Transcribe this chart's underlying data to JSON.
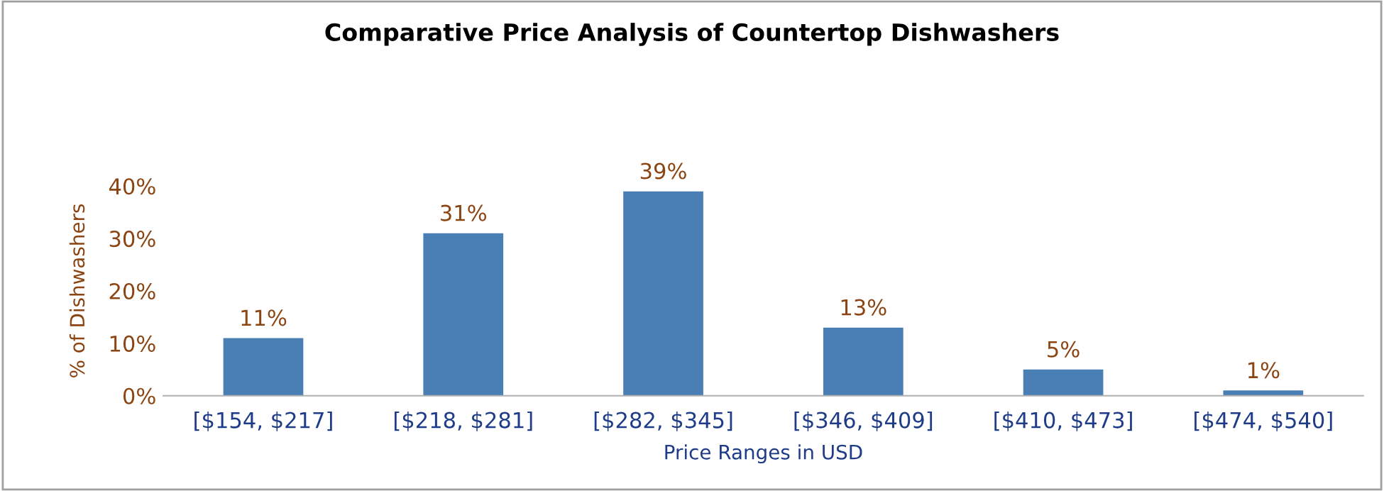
{
  "chart_data": {
    "type": "bar",
    "title": "Comparative Price Analysis of Countertop Dishwashers",
    "xlabel": "Price Ranges in USD",
    "ylabel": "% of Dishwashers",
    "categories": [
      "[$154, $217]",
      "[$218, $281]",
      "[$282, $345]",
      "[$346, $409]",
      "[$410, $473]",
      "[$474, $540]"
    ],
    "values": [
      11,
      31,
      39,
      13,
      5,
      1
    ],
    "value_labels": [
      "11%",
      "31%",
      "39%",
      "13%",
      "5%",
      "1%"
    ],
    "color": "#4a7fb5",
    "ylim": [
      0,
      40
    ],
    "yticks": [
      {
        "value": 0,
        "label": "0%"
      },
      {
        "value": 10,
        "label": "10%"
      },
      {
        "value": 20,
        "label": "20%"
      },
      {
        "value": 30,
        "label": "30%"
      },
      {
        "value": 40,
        "label": "40%"
      }
    ],
    "grid": false,
    "legend": false
  }
}
